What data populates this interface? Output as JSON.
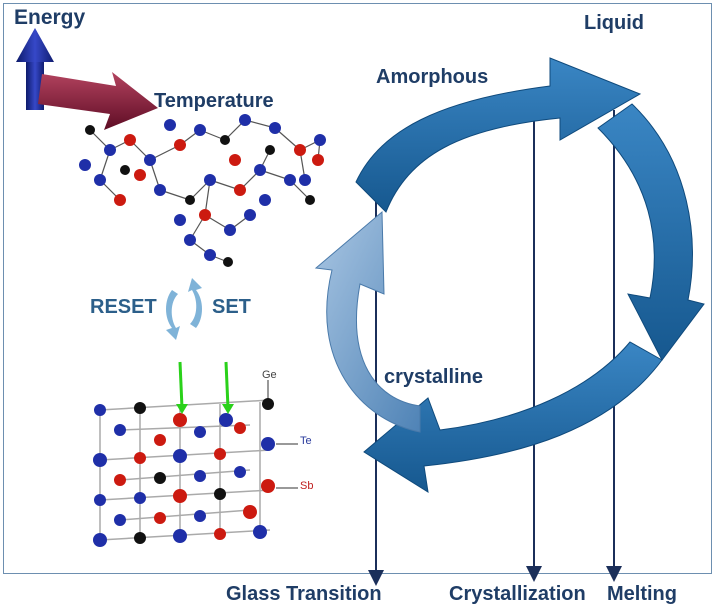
{
  "labels": {
    "energy": "Energy",
    "temperature": "Temperature",
    "liquid": "Liquid",
    "amorphous": "Amorphous",
    "crystalline": "crystalline",
    "reset": "RESET",
    "set": "SET",
    "ge": "Ge",
    "te": "Te",
    "sb": "Sb",
    "glass_transition": "Glass Transition",
    "crystallization": "Crystallization",
    "melting": "Melting"
  },
  "colors": {
    "text": "#1f3d66",
    "cycle_arrow": "#1f6fae",
    "cycle_arrow_light": "#5a8fc0",
    "temperature_line": "#1b2f5a",
    "energy_arrow": "#1a2f8a",
    "temperature_arrow": "#7a1030",
    "atom_blue": "#1f2fa8",
    "atom_red": "#cc1a10",
    "atom_black": "#111111",
    "pointer_green": "#2ad11a"
  }
}
